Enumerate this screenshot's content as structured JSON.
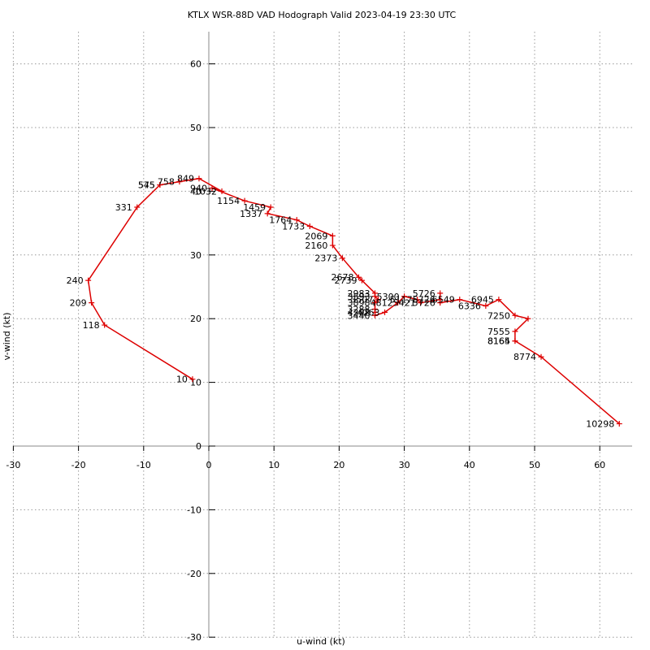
{
  "chart_data": {
    "type": "line",
    "title": "KTLX WSR-88D VAD Hodograph Valid 2023-04-19 23:30 UTC",
    "xlabel": "u-wind (kt)",
    "ylabel": "v-wind (kt)",
    "xlim": [
      -30,
      65
    ],
    "ylim": [
      -30,
      65
    ],
    "xticks": [
      -30,
      -20,
      -10,
      0,
      10,
      20,
      30,
      40,
      50,
      60
    ],
    "yticks": [
      -30,
      -20,
      -10,
      0,
      10,
      20,
      30,
      40,
      50,
      60
    ],
    "grid": true,
    "line_color": "#dd0000",
    "points": [
      {
        "label": "10",
        "x": -2.5,
        "y": 10.5
      },
      {
        "label": "118",
        "x": -16.0,
        "y": 19.0
      },
      {
        "label": "209",
        "x": -18.0,
        "y": 22.5
      },
      {
        "label": "240",
        "x": -18.5,
        "y": 26.0
      },
      {
        "label": "331",
        "x": -11.0,
        "y": 37.5
      },
      {
        "label": "575",
        "x": -7.5,
        "y": 41.0
      },
      {
        "label": "545",
        "x": -7.5,
        "y": 41.0
      },
      {
        "label": "758",
        "x": -4.5,
        "y": 41.5
      },
      {
        "label": "849",
        "x": -1.5,
        "y": 42.0
      },
      {
        "label": "1032",
        "x": 2.0,
        "y": 40.0
      },
      {
        "label": "940",
        "x": 0.5,
        "y": 40.5
      },
      {
        "label": "1154",
        "x": 5.5,
        "y": 38.5
      },
      {
        "label": "1459",
        "x": 9.5,
        "y": 37.5
      },
      {
        "label": "1337",
        "x": 9.0,
        "y": 36.5
      },
      {
        "label": "1764",
        "x": 13.5,
        "y": 35.5
      },
      {
        "label": "1733",
        "x": 15.5,
        "y": 34.5
      },
      {
        "label": "2069",
        "x": 19.0,
        "y": 33.0
      },
      {
        "label": "2160",
        "x": 19.0,
        "y": 31.5
      },
      {
        "label": "2373",
        "x": 20.5,
        "y": 29.5
      },
      {
        "label": "2678",
        "x": 23.0,
        "y": 26.5
      },
      {
        "label": "2739",
        "x": 23.5,
        "y": 26.0
      },
      {
        "label": "2983",
        "x": 25.5,
        "y": 24.0
      },
      {
        "label": "3593",
        "x": 25.5,
        "y": 23.5
      },
      {
        "label": "3507",
        "x": 26.0,
        "y": 23.0
      },
      {
        "label": "3898",
        "x": 25.5,
        "y": 22.5
      },
      {
        "label": "3288",
        "x": 25.5,
        "y": 21.5
      },
      {
        "label": "4202",
        "x": 25.5,
        "y": 21.0
      },
      {
        "label": "3440",
        "x": 25.5,
        "y": 20.5
      },
      {
        "label": "4263",
        "x": 27.0,
        "y": 21.0
      },
      {
        "label": "4812",
        "x": 29.0,
        "y": 22.5
      },
      {
        "label": "5300",
        "x": 30.0,
        "y": 23.5
      },
      {
        "label": "5117",
        "x": 32.0,
        "y": 23.0
      },
      {
        "label": "5421",
        "x": 32.5,
        "y": 22.5
      },
      {
        "label": "5726",
        "x": 35.5,
        "y": 23.0
      },
      {
        "label": "5726",
        "x": 35.5,
        "y": 24.0
      },
      {
        "label": "5726",
        "x": 35.5,
        "y": 22.5
      },
      {
        "label": "6549",
        "x": 38.5,
        "y": 23.0
      },
      {
        "label": "6336",
        "x": 42.5,
        "y": 22.0
      },
      {
        "label": "6945",
        "x": 44.5,
        "y": 23.0
      },
      {
        "label": "7250",
        "x": 47.0,
        "y": 20.5
      },
      {
        "label": "",
        "x": 49.0,
        "y": 20.0
      },
      {
        "label": "7555",
        "x": 47.0,
        "y": 18.0
      },
      {
        "label": "8165",
        "x": 47.0,
        "y": 16.5
      },
      {
        "label": "8164",
        "x": 47.0,
        "y": 16.5
      },
      {
        "label": "8774",
        "x": 51.0,
        "y": 14.0
      },
      {
        "label": "10298",
        "x": 63.0,
        "y": 3.5
      }
    ]
  }
}
